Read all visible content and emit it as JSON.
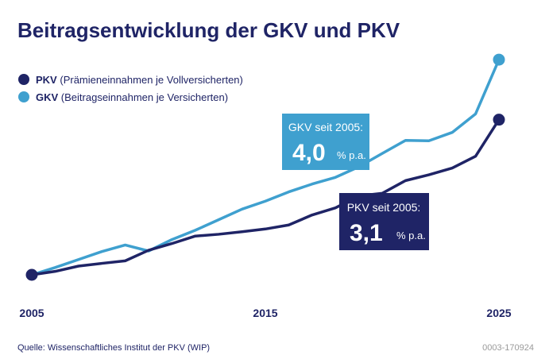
{
  "colors": {
    "pkv": "#1f2466",
    "gkv": "#3fa0cf",
    "text": "#1f2466",
    "muted": "#9a9a9a"
  },
  "chart_data": {
    "type": "line",
    "title": "Beitragsentwicklung der GKV und PKV",
    "xlabel": "",
    "ylabel": "",
    "x": [
      2005,
      2006,
      2007,
      2008,
      2009,
      2010,
      2011,
      2012,
      2013,
      2014,
      2015,
      2016,
      2017,
      2018,
      2019,
      2020,
      2021,
      2022,
      2023,
      2024,
      2025
    ],
    "x_ticks": [
      "2005",
      "2015",
      "2025"
    ],
    "xlim": [
      2005,
      2025
    ],
    "ylim": [
      100,
      220
    ],
    "grid": false,
    "y_axis_shown": false,
    "legend_position": "top-left",
    "series": [
      {
        "name": "PKV",
        "description": "(Prämieneinnahmen je Vollversicherten)",
        "color": "#1f2466",
        "values": [
          100,
          101.9,
          104.8,
          106.3,
          107.7,
          113.5,
          117.2,
          121.3,
          122.3,
          123.7,
          125.2,
          127.4,
          132.9,
          136.8,
          143.4,
          144.8,
          151.8,
          155.0,
          158.7,
          165.2,
          185.3
        ]
      },
      {
        "name": "GKV",
        "description": "(Beitragseinnahmen je Versicherten)",
        "color": "#3fa0cf",
        "values": [
          100,
          104,
          108.4,
          112.8,
          116.4,
          113.1,
          119.4,
          124.5,
          130.3,
          136.1,
          140.5,
          145.6,
          149.9,
          153.6,
          159.4,
          166.7,
          173.9,
          173.7,
          178.3,
          188.5,
          218.3
        ]
      }
    ],
    "annotations": [
      {
        "series": "GKV",
        "label": "GKV seit 2005:",
        "value": "4,0",
        "unit": "% p.a."
      },
      {
        "series": "PKV",
        "label": "PKV seit 2005:",
        "value": "3,1",
        "unit": "% p.a."
      }
    ]
  },
  "footer": {
    "source": "Quelle: Wissenschaftliches Institut der PKV (WIP)",
    "code": "0003-170924"
  }
}
